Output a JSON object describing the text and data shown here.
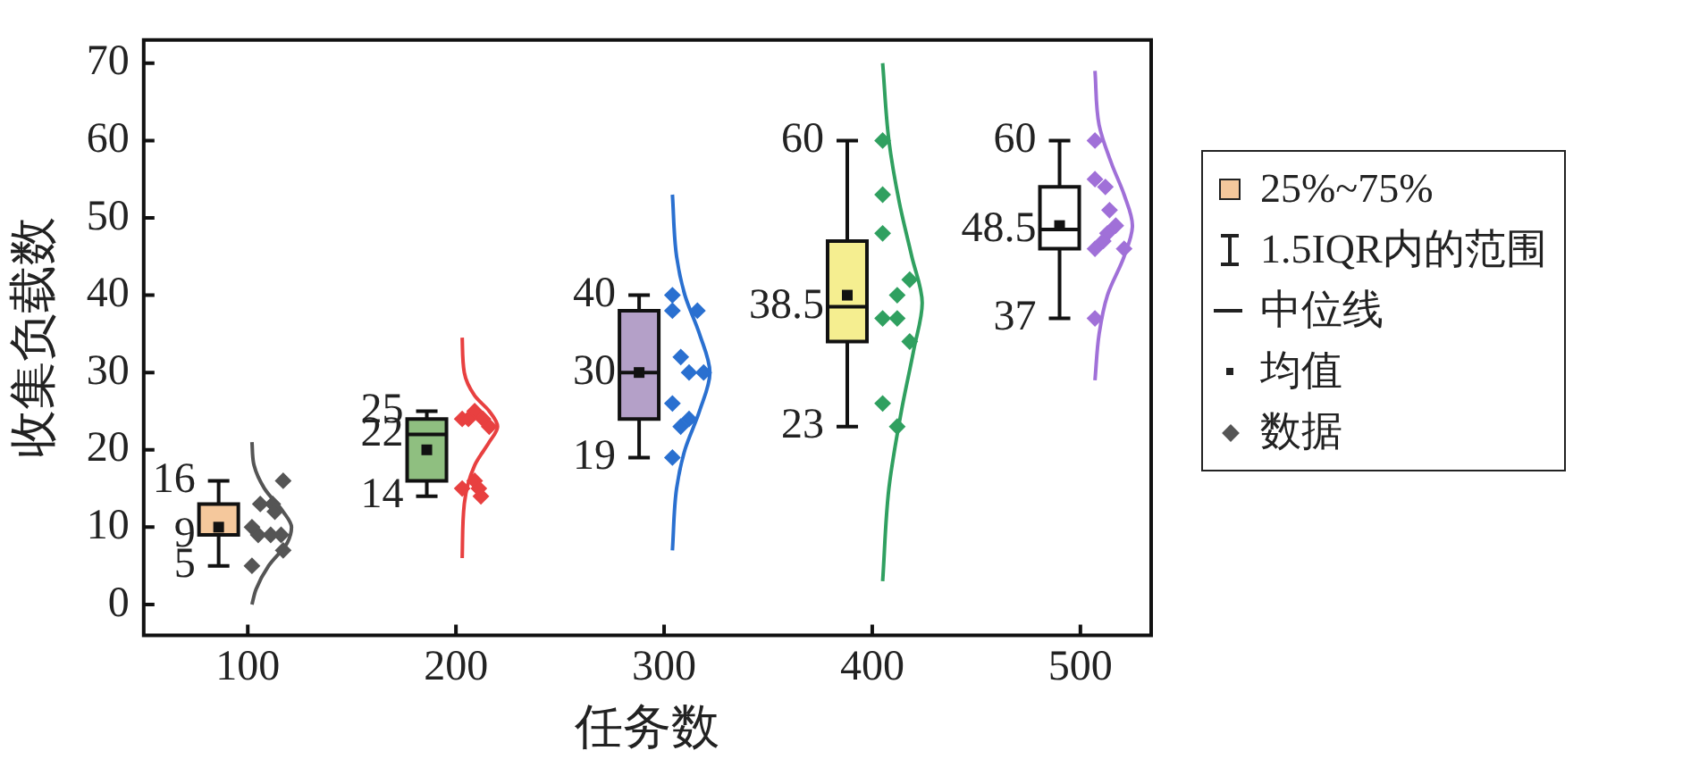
{
  "chart_data": {
    "type": "box",
    "xlabel": "任务数",
    "ylabel": "收集负载数",
    "xlim": [
      50,
      534
    ],
    "xticks": [
      100,
      200,
      300,
      400,
      500
    ],
    "ylim": [
      -4,
      73
    ],
    "yticks": [
      0,
      10,
      20,
      30,
      40,
      50,
      60,
      70
    ],
    "grid": false,
    "legend": "right",
    "marker": "diamond",
    "annotations": [
      "1.5IQR内的范围",
      "中位线",
      "均值",
      {
        "text": "16",
        "x": 86,
        "y": 16
      },
      {
        "text": "9",
        "x": 86,
        "y": 9
      },
      {
        "text": "5",
        "x": 86,
        "y": 5
      },
      {
        "text": "25",
        "x": 186,
        "y": 25
      },
      {
        "text": "22",
        "x": 186,
        "y": 22
      },
      {
        "text": "14",
        "x": 186,
        "y": 14
      },
      {
        "text": "40",
        "x": 288,
        "y": 40
      },
      {
        "text": "30",
        "x": 288,
        "y": 30
      },
      {
        "text": "19",
        "x": 288,
        "y": 19
      },
      {
        "text": "60",
        "x": 388,
        "y": 60
      },
      {
        "text": "38.5",
        "x": 388,
        "y": 38.5
      },
      {
        "text": "23",
        "x": 388,
        "y": 23
      },
      {
        "text": "60",
        "x": 490,
        "y": 60
      },
      {
        "text": "48.5",
        "x": 490,
        "y": 48.5
      },
      {
        "text": "37",
        "x": 490,
        "y": 37
      }
    ],
    "series": [
      {
        "name": "25%~75%",
        "color": "#f5c89c",
        "colors": [
          "#f5c89c",
          "#8fbf80",
          "#b4a0c8",
          "#f5ee90",
          "#ffffff"
        ],
        "x": [
          86,
          186,
          288,
          388,
          490
        ],
        "boxes": [
          {
            "low": 5,
            "q1": 9,
            "median": 9,
            "q3": 13,
            "high": 16,
            "mean": 10
          },
          {
            "low": 14,
            "q1": 16,
            "median": 22,
            "q3": 24,
            "high": 25,
            "mean": 20
          },
          {
            "low": 19,
            "q1": 24,
            "median": 30,
            "q3": 38,
            "high": 40,
            "mean": 30
          },
          {
            "low": 23,
            "q1": 34,
            "median": 38.5,
            "q3": 47,
            "high": 60,
            "mean": 40
          },
          {
            "low": 37,
            "q1": 46,
            "median": 48.5,
            "q3": 54,
            "high": 60,
            "mean": 49
          }
        ]
      },
      {
        "type": "scatter",
        "name": "数据",
        "color": "#555555",
        "colors": [
          "#555555",
          "#555555",
          "#555555",
          "#555555",
          "#555555",
          "#555555",
          "#555555",
          "#555555",
          "#555555",
          "#555555",
          "#e84040",
          "#e84040",
          "#e84040",
          "#e84040",
          "#e84040",
          "#e84040",
          "#e84040",
          "#e84040",
          "#e84040",
          "#2a70d0",
          "#2a70d0",
          "#2a70d0",
          "#2a70d0",
          "#2a70d0",
          "#2a70d0",
          "#2a70d0",
          "#2a70d0",
          "#2a70d0",
          "#2a70d0",
          "#30a060",
          "#30a060",
          "#30a060",
          "#30a060",
          "#30a060",
          "#30a060",
          "#30a060",
          "#30a060",
          "#30a060",
          "#30a060",
          "#a070d8",
          "#a070d8",
          "#a070d8",
          "#a070d8",
          "#a070d8",
          "#a070d8",
          "#a070d8",
          "#a070d8",
          "#a070d8",
          "#a070d8"
        ],
        "x": [
          117,
          106,
          112,
          113,
          102,
          105,
          111,
          116,
          117,
          102,
          203,
          209,
          213,
          216,
          206,
          203,
          209,
          211,
          212,
          304,
          304,
          316,
          308,
          312,
          319,
          304,
          312,
          308,
          304,
          405,
          405,
          405,
          418,
          412,
          405,
          412,
          418,
          405,
          412,
          507,
          507,
          512,
          514,
          517,
          513,
          511,
          507,
          521,
          507
        ],
        "values": [
          16,
          13,
          13,
          12,
          10,
          9,
          9,
          9,
          7,
          5,
          24,
          25,
          24,
          23,
          24,
          15,
          16,
          15,
          14,
          40,
          38,
          38,
          32,
          30,
          30,
          26,
          24,
          23,
          19,
          60,
          53,
          48,
          42,
          40,
          37,
          37,
          34,
          26,
          23,
          60,
          55,
          54,
          51,
          49,
          48,
          47,
          46,
          46,
          37
        ]
      },
      {
        "type": "line",
        "marker": "none",
        "color": "#555555",
        "x": [
          102,
          103,
          108,
          117,
          121,
          119,
          110,
          104,
          102
        ],
        "values": [
          21,
          18,
          15,
          12,
          10,
          8,
          5,
          2,
          0
        ]
      },
      {
        "type": "line",
        "marker": "none",
        "color": "#e84040",
        "x": [
          203,
          204,
          209,
          216,
          220,
          216,
          209,
          204,
          203
        ],
        "values": [
          34.5,
          30,
          27,
          25,
          23,
          21,
          18,
          13,
          6
        ]
      },
      {
        "type": "line",
        "marker": "none",
        "color": "#2a70d0",
        "x": [
          304,
          306,
          310,
          317,
          322,
          317,
          310,
          306,
          304
        ],
        "values": [
          53,
          45,
          40,
          35,
          30,
          25,
          20,
          15,
          7
        ]
      },
      {
        "type": "line",
        "marker": "none",
        "color": "#30a060",
        "x": [
          405,
          408,
          413,
          419,
          424,
          420,
          414,
          408,
          405
        ],
        "values": [
          70,
          60,
          52,
          45,
          39,
          33,
          25,
          15,
          3
        ]
      },
      {
        "type": "line",
        "marker": "none",
        "color": "#a070d8",
        "x": [
          507,
          509,
          515,
          521,
          525,
          521,
          513,
          509,
          507
        ],
        "values": [
          69,
          62,
          57,
          53,
          49,
          45,
          40,
          35,
          29
        ]
      }
    ]
  }
}
